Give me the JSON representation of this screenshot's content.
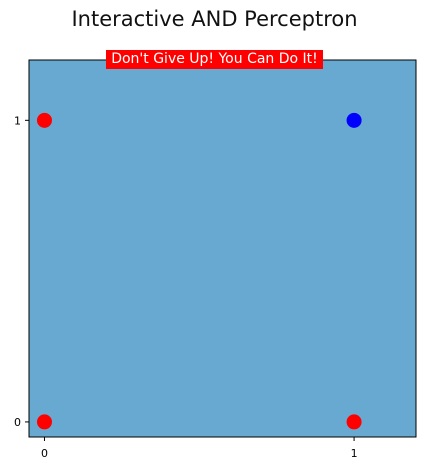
{
  "figure_title": "Interactive AND Perceptron",
  "banner": {
    "text": "Don't Give Up! You Can Do It!",
    "background": "#ff0000",
    "color": "#ffffff"
  },
  "colors": {
    "plot_background": "#67a9d1",
    "axes_edge": "#000000",
    "class_0": "#ff0000",
    "class_1": "#0000ff"
  },
  "chart_data": {
    "type": "scatter",
    "title": "Interactive AND Perceptron",
    "xlabel": "",
    "ylabel": "",
    "xlim": [
      -0.05,
      1.2
    ],
    "ylim": [
      -0.05,
      1.2
    ],
    "xticks": [
      0,
      1
    ],
    "yticks": [
      0,
      1
    ],
    "grid": false,
    "points": [
      {
        "x": 0,
        "y": 1,
        "color": "#ff0000"
      },
      {
        "x": 1,
        "y": 1,
        "color": "#0000ff"
      },
      {
        "x": 0,
        "y": 0,
        "color": "#ff0000"
      },
      {
        "x": 1,
        "y": 0,
        "color": "#ff0000"
      }
    ],
    "annotations": [
      "Don't Give Up! You Can Do It!"
    ]
  }
}
